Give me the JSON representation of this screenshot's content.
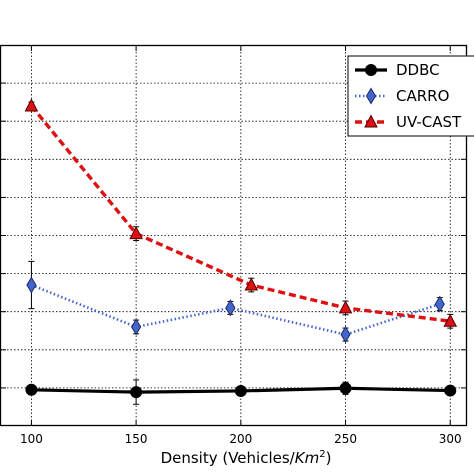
{
  "chart_data": {
    "type": "line",
    "xlabel_main": "Density (Vehicles/",
    "xlabel_unit": "Km",
    "xlabel_exp": "2",
    "xlabel_close": ")",
    "x_ticks": [
      100,
      150,
      200,
      250,
      300
    ],
    "x_tick_labels": [
      "100",
      "150",
      "200",
      "250",
      "300"
    ],
    "xlim": [
      85,
      308
    ],
    "ylim": [
      0,
      10
    ],
    "y_ticks": [
      1,
      2,
      3,
      4,
      5,
      6,
      7,
      8,
      9
    ],
    "grid": true,
    "legend_position": "top-right",
    "series": [
      {
        "name": "DDBC",
        "color": "#000000",
        "line_style": "solid",
        "marker": "circle",
        "x": [
          100,
          150,
          200,
          250,
          300
        ],
        "y": [
          0.95,
          0.89,
          0.92,
          0.99,
          0.93
        ],
        "err": [
          0,
          0.32,
          0,
          0.16,
          0
        ]
      },
      {
        "name": "CARRO",
        "color": "#4466cc",
        "line_style": "dotted",
        "marker": "diamond",
        "x": [
          100,
          150,
          195,
          250,
          295
        ],
        "y": [
          3.7,
          2.6,
          3.1,
          2.4,
          3.2
        ],
        "err": [
          0.62,
          0.18,
          0.17,
          0.17,
          0.17
        ]
      },
      {
        "name": "UV-CAST",
        "color": "#dd1111",
        "line_style": "dashed",
        "marker": "triangle",
        "x": [
          100,
          150,
          205,
          250,
          300
        ],
        "y": [
          8.4,
          5.05,
          3.7,
          3.1,
          2.75
        ],
        "err": [
          0.1,
          0.18,
          0.18,
          0.18,
          0.18
        ]
      }
    ]
  }
}
